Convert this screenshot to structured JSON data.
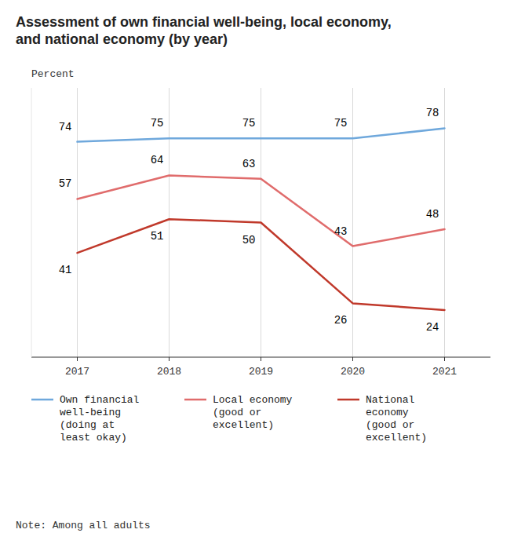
{
  "chart_data": {
    "type": "line",
    "title": "Assessment of own financial well-being, local economy,\nand national economy (by year)",
    "y_label": "Percent",
    "note": "Note: Among all adults",
    "x": [
      2017,
      2018,
      2019,
      2020,
      2021
    ],
    "xlim": [
      2016.5,
      2021.5
    ],
    "xticks": [
      2017,
      2018,
      2019,
      2020,
      2021
    ],
    "ylim": [
      10,
      90
    ],
    "series": [
      {
        "name": "Own financial\nwell-being\n(doing at\nleast okay)",
        "color": "#6fa8dc",
        "values": [
          74,
          75,
          75,
          75,
          78
        ]
      },
      {
        "name": "Local economy\n(good or\nexcellent)",
        "color": "#e06c6c",
        "values": [
          57,
          64,
          63,
          43,
          48
        ]
      },
      {
        "name": "National\neconomy\n(good or\nexcellent)",
        "color": "#c0392b",
        "values": [
          41,
          51,
          50,
          26,
          24
        ]
      }
    ],
    "grid": true,
    "legend": "bottom",
    "data_labels": true,
    "tick_labels": "x"
  }
}
